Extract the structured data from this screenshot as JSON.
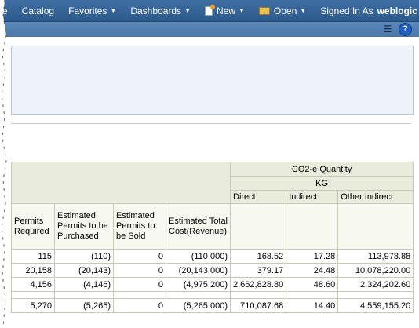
{
  "nav": {
    "edge_fragment": "e",
    "catalog": "Catalog",
    "favorites": "Favorites",
    "dashboards": "Dashboards",
    "new": "New",
    "open": "Open",
    "signed_in_as": "Signed In As",
    "user": "weblogic"
  },
  "table": {
    "measure_header": "CO2-e Quantity",
    "unit_header": "KG",
    "emission_types": [
      "Direct",
      "Indirect",
      "Other Indirect"
    ],
    "columns": [
      "Permits Required",
      "Estimated Permits to be Purchased",
      "Estimated Permits to be Sold",
      "Estimated Total Cost(Revenue)"
    ],
    "rows": [
      [
        "115",
        "(110)",
        "0",
        "(110,000)",
        "168.52",
        "17.28",
        "113,978.88"
      ],
      [
        "20,158",
        "(20,143)",
        "0",
        "(20,143,000)",
        "379.17",
        "24.48",
        "10,078,220.00"
      ],
      [
        "4,156",
        "(4,146)",
        "0",
        "(4,975,200)",
        "2,662,828.80",
        "48.60",
        "2,324,202.60"
      ],
      [
        "5,270",
        "(5,265)",
        "0",
        "(5,265,000)",
        "710,087.68",
        "14.40",
        "4,559,155.20"
      ]
    ]
  },
  "colors": {
    "nav_bg": "#2d5a8c",
    "subbar_bg": "#4a76a8",
    "table_header_bg": "#e9ecdc"
  }
}
